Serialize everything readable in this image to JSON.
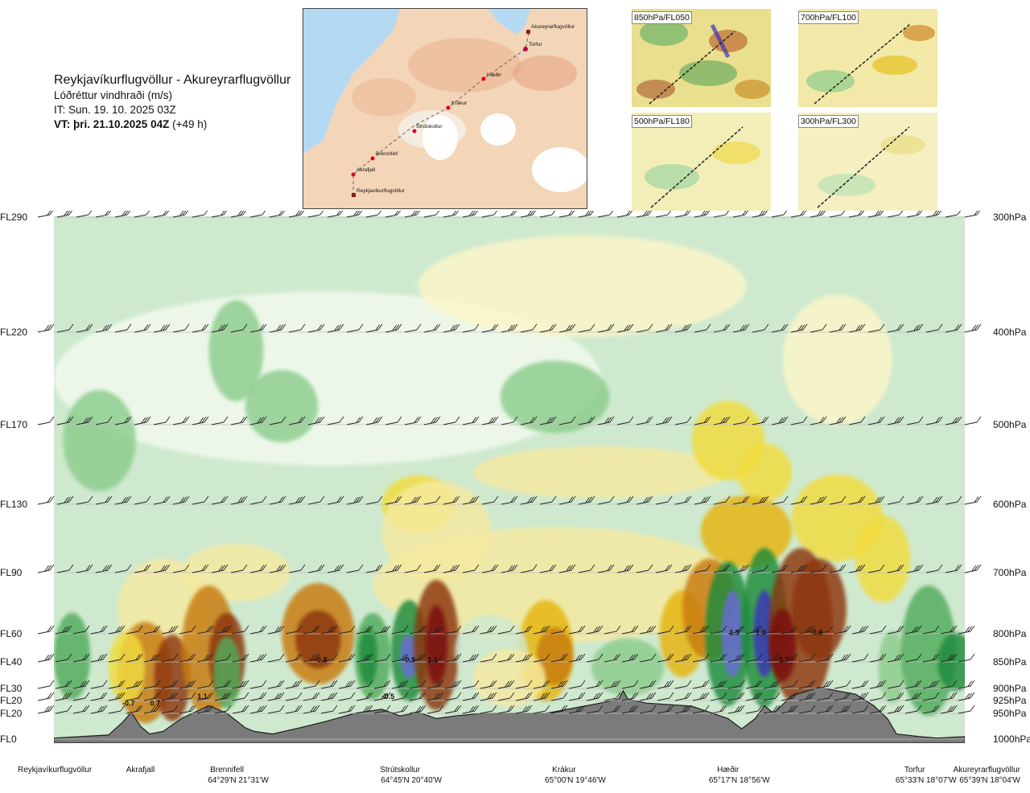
{
  "header": {
    "title": "Reykjavíkurflugvöllur - Akureyrarflugvöllur",
    "subtitle": "Lóðréttur vindhraði (m/s)",
    "it": "IT: Sun. 19. 10. 2025 03Z",
    "vt_bold": "VT: þri. 21.10.2025 04Z",
    "vt_rest": " (+49 h)"
  },
  "map": {
    "stations": [
      "Akureyrarflugvöllur",
      "Torfur",
      "Hæðir",
      "Krákur",
      "Strútskollur",
      "Brennifell",
      "Akrafjall",
      "Reykjavíkurflugvöllur"
    ]
  },
  "panels": [
    {
      "label": "850hPa/FL050"
    },
    {
      "label": "700hPa/FL100"
    },
    {
      "label": "500hPa/FL180"
    },
    {
      "label": "300hPa/FL300"
    }
  ],
  "chart_data": {
    "type": "heatmap",
    "title": "Lóðréttur vindhraði (m/s)",
    "left_axis_labels": [
      "FL290",
      "FL220",
      "FL170",
      "FL130",
      "FL90",
      "FL60",
      "FL40",
      "FL30",
      "FL20",
      "FL20",
      "FL0"
    ],
    "right_axis_labels": [
      "300hPa",
      "400hPa",
      "500hPa",
      "600hPa",
      "700hPa",
      "800hPa",
      "850hPa",
      "900hPa",
      "925hPa",
      "950hPa",
      "1000hPa"
    ],
    "pressure_levels_hPa": [
      300,
      400,
      500,
      600,
      700,
      800,
      850,
      900,
      925,
      950,
      1000
    ],
    "x_waypoints": [
      {
        "name": "Reykjavíkurflugvöllur",
        "coord": "",
        "dist": 0.0
      },
      {
        "name": "Akrafjall",
        "coord": "",
        "dist": 0.095
      },
      {
        "name": "Brennifell",
        "coord": "64°29'N 21°31'W",
        "dist": 0.19
      },
      {
        "name": "Strútskollur",
        "coord": "64°45'N 20°40'W",
        "dist": 0.38
      },
      {
        "name": "Krákur",
        "coord": "65°00'N 19°46'W",
        "dist": 0.56
      },
      {
        "name": "Hæðir",
        "coord": "65°17'N 18°56'W",
        "dist": 0.74
      },
      {
        "name": "Torfur",
        "coord": "65°33'N 18°07'W",
        "dist": 0.945
      },
      {
        "name": "Akureyrarflugvöllur",
        "coord": "65°39'N 18°04'W",
        "dist": 1.0
      }
    ],
    "value_labels": [
      {
        "text": "-0.7",
        "dist": 0.082,
        "p": 935
      },
      {
        "text": "0.7",
        "dist": 0.111,
        "p": 935
      },
      {
        "text": "1.1",
        "dist": 0.163,
        "p": 922
      },
      {
        "text": "-0.8",
        "dist": 0.293,
        "p": 851
      },
      {
        "text": "-0.5",
        "dist": 0.367,
        "p": 922
      },
      {
        "text": "-0.9",
        "dist": 0.39,
        "p": 851
      },
      {
        "text": "1.1",
        "dist": 0.416,
        "p": 851
      },
      {
        "text": "1.5",
        "dist": 0.747,
        "p": 802
      },
      {
        "text": "1.0",
        "dist": 0.776,
        "p": 802
      },
      {
        "text": "-1.7",
        "dist": 0.8,
        "p": 851
      },
      {
        "text": "-0.8",
        "dist": 0.837,
        "p": 802
      }
    ],
    "color_scale": [
      "#3a35b8",
      "#6a6ad8",
      "#0d5e1e",
      "#1f8a3a",
      "#51ab5c",
      "#8ccc8c",
      "#cfe9cf",
      "#f3fbef",
      "#fdf6c8",
      "#f6e9a0",
      "#f2dc3e",
      "#e6b410",
      "#c87a10",
      "#8c3410",
      "#7a1010"
    ]
  }
}
